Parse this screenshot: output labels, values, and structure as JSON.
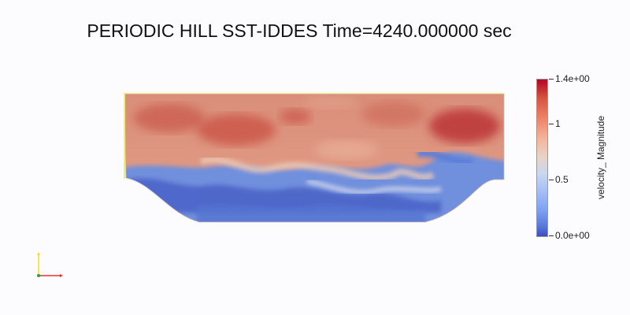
{
  "title": "PERIODIC HILL SST-IDDES Time=4240.000000 sec",
  "colorbar": {
    "title": "velocity_ Magnitude",
    "tick_max": "1.4e+00",
    "tick_1": "1",
    "tick_05": "0.5",
    "tick_min": "0.0e+00",
    "range": [
      0,
      1.4
    ],
    "colormap": [
      "#b40426",
      "#ee8468",
      "#e8d4c8",
      "#a3bcf5",
      "#3b4cc0"
    ]
  },
  "orientation_axes": {
    "x_color": "#e8312f",
    "y_color": "#f0e020",
    "z_color": "#2ca02c"
  }
}
